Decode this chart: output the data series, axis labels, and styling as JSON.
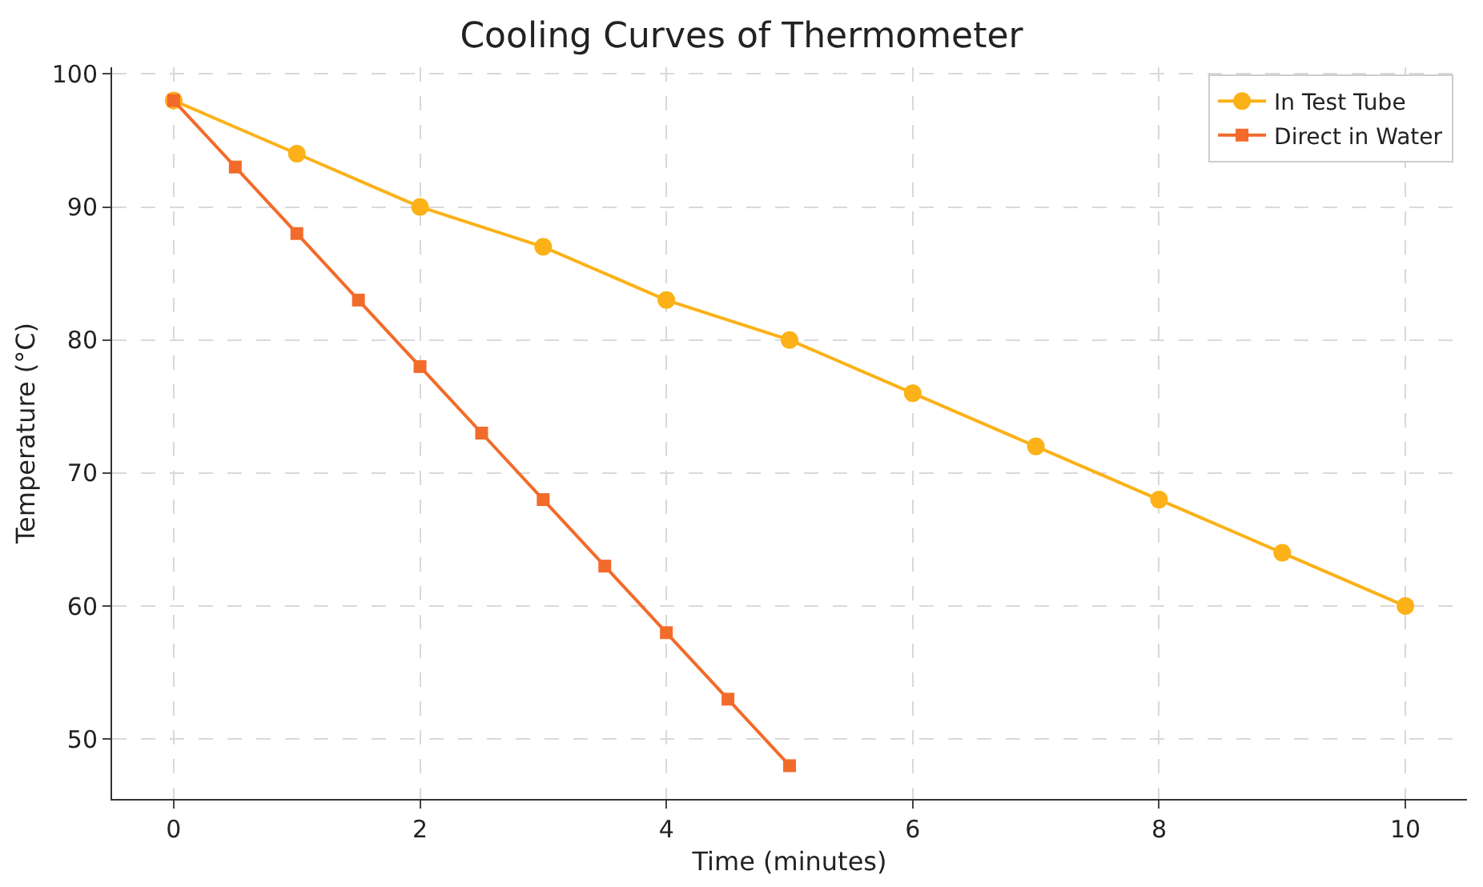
{
  "chart_data": {
    "type": "line",
    "title": "Cooling Curves of Thermometer",
    "xlabel": "Time (minutes)",
    "ylabel": "Temperature (°C)",
    "series": [
      {
        "name": "In Test Tube",
        "color": "#fbb117",
        "marker": "circle",
        "x": [
          0,
          1,
          2,
          3,
          4,
          5,
          6,
          7,
          8,
          9,
          10
        ],
        "values": [
          98,
          94,
          90,
          87,
          83,
          80,
          76,
          72,
          68,
          64,
          60
        ]
      },
      {
        "name": "Direct in Water",
        "color": "#f26b2a",
        "marker": "square",
        "x": [
          0,
          0.5,
          1,
          1.5,
          2,
          2.5,
          3,
          3.5,
          4,
          4.5,
          5
        ],
        "values": [
          98,
          93,
          88,
          83,
          78,
          73,
          68,
          63,
          58,
          53,
          48
        ]
      }
    ],
    "xlim": [
      -0.5,
      10.5
    ],
    "xticks": [
      0,
      2,
      4,
      6,
      8,
      10
    ],
    "ylim": [
      45.5,
      100.5
    ],
    "yticks": [
      50,
      60,
      70,
      80,
      90,
      100
    ],
    "grid": true,
    "legend": "top right",
    "line_style": "solid"
  }
}
